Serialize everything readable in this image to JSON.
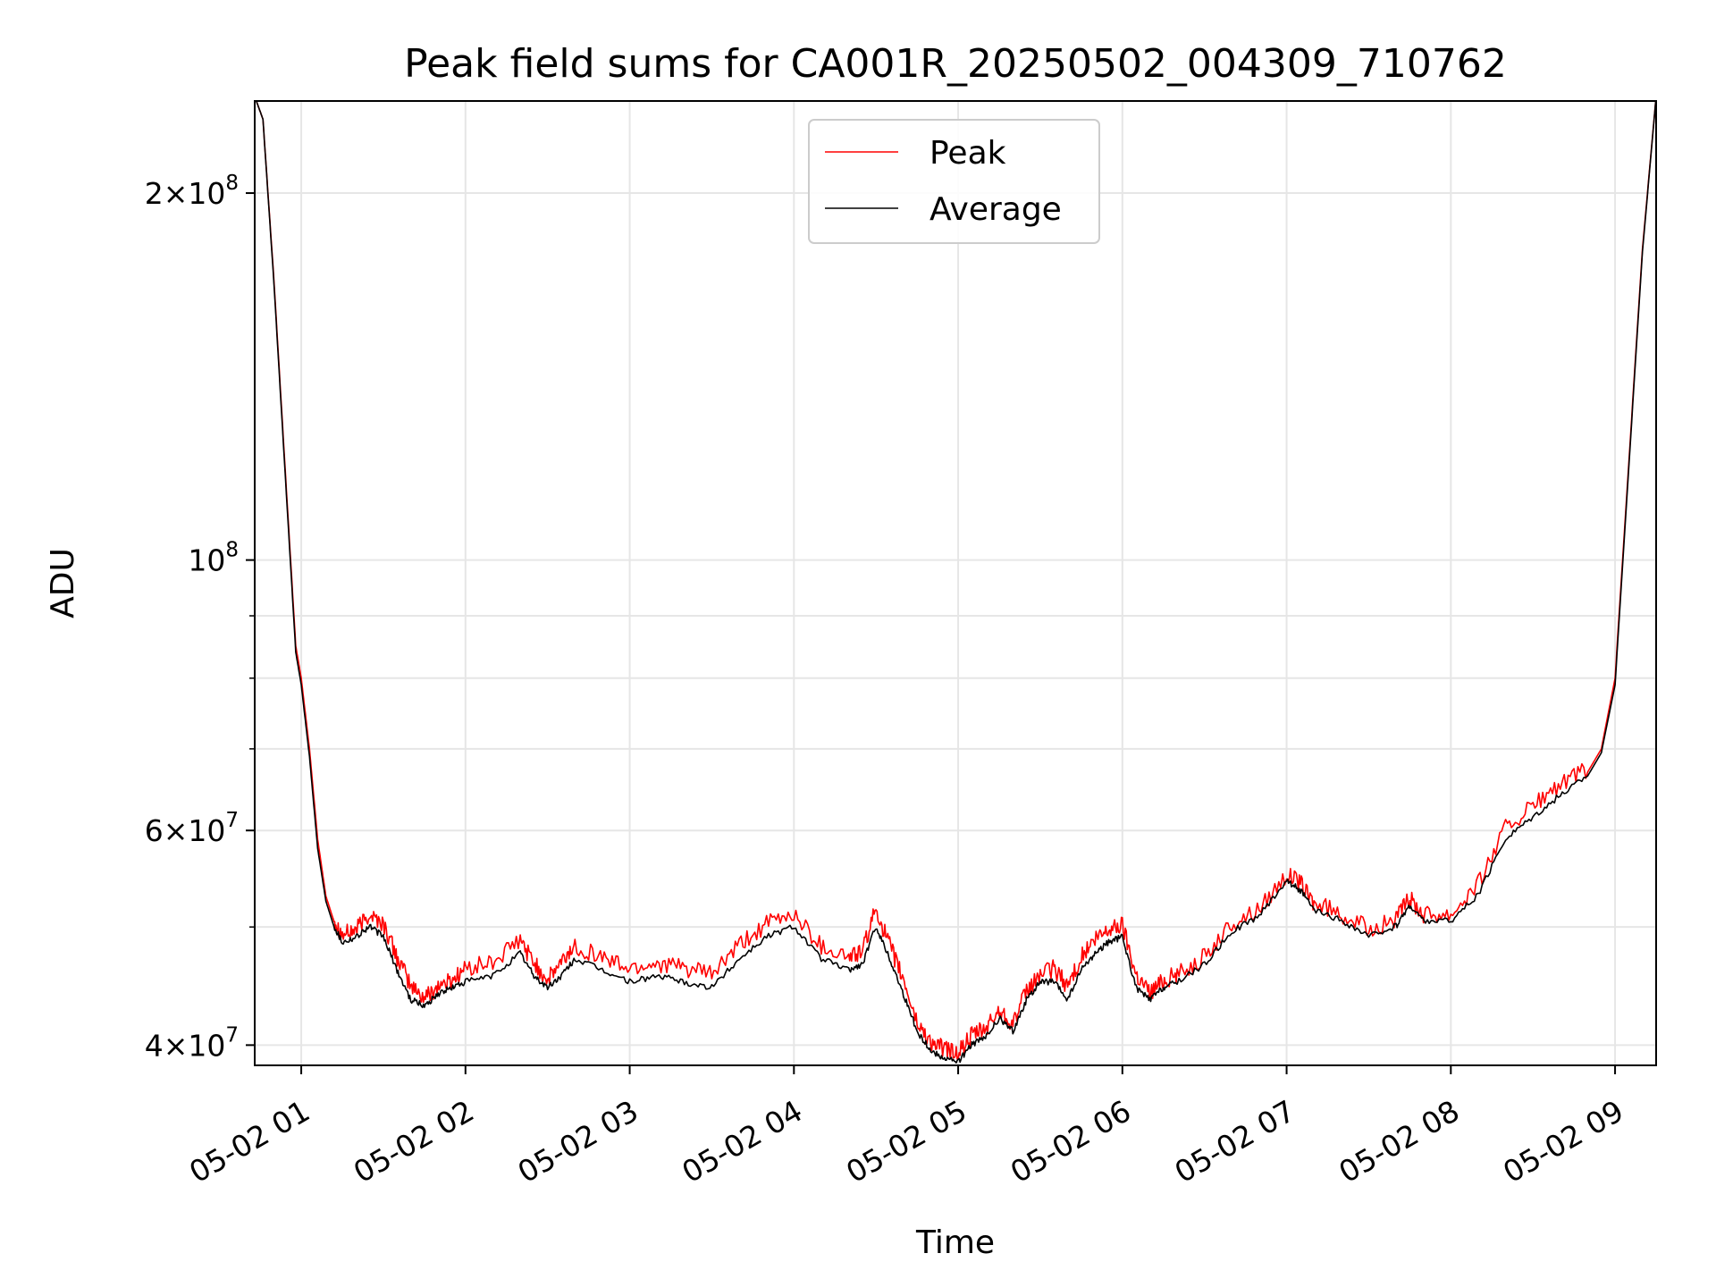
{
  "chart_data": {
    "type": "line",
    "title": "Peak field sums for CA001R_20250502_004309_710762",
    "xlabel": "Time",
    "ylabel": "ADU",
    "xscale": "time",
    "yscale": "log",
    "xlim": [
      "2025-05-02 00:43",
      "2025-05-02 09:15"
    ],
    "ylim": [
      38500000,
      238000000
    ],
    "x_ticks": [
      "05-02 01",
      "05-02 02",
      "05-02 03",
      "05-02 04",
      "05-02 05",
      "05-02 06",
      "05-02 07",
      "05-02 08",
      "05-02 09"
    ],
    "y_ticks": [
      {
        "base": "4",
        "exp": "7",
        "value": 40000000
      },
      {
        "base": "6",
        "exp": "7",
        "value": 60000000
      },
      {
        "base": "",
        "exp": "8",
        "value": 100000000
      },
      {
        "base": "2",
        "exp": "8",
        "value": 200000000
      }
    ],
    "y_minor_ticks": [
      50000000,
      70000000,
      80000000,
      90000000
    ],
    "grid": true,
    "legend_position": "top-center",
    "series": [
      {
        "name": "Peak",
        "color": "#ff0000",
        "x": [
          "2025-05-02 00:43",
          "2025-05-02 00:46",
          "2025-05-02 00:50",
          "2025-05-02 00:54",
          "2025-05-02 00:58",
          "2025-05-02 01:00",
          "2025-05-02 01:03",
          "2025-05-02 01:06",
          "2025-05-02 01:09",
          "2025-05-02 01:12",
          "2025-05-02 01:15",
          "2025-05-02 01:20",
          "2025-05-02 01:25",
          "2025-05-02 01:30",
          "2025-05-02 01:35",
          "2025-05-02 01:40",
          "2025-05-02 01:45",
          "2025-05-02 01:50",
          "2025-05-02 01:55",
          "2025-05-02 02:00",
          "2025-05-02 02:10",
          "2025-05-02 02:20",
          "2025-05-02 02:25",
          "2025-05-02 02:30",
          "2025-05-02 02:35",
          "2025-05-02 02:40",
          "2025-05-02 02:50",
          "2025-05-02 03:00",
          "2025-05-02 03:10",
          "2025-05-02 03:20",
          "2025-05-02 03:30",
          "2025-05-02 03:40",
          "2025-05-02 03:50",
          "2025-05-02 04:00",
          "2025-05-02 04:10",
          "2025-05-02 04:20",
          "2025-05-02 04:25",
          "2025-05-02 04:30",
          "2025-05-02 04:35",
          "2025-05-02 04:40",
          "2025-05-02 04:45",
          "2025-05-02 04:50",
          "2025-05-02 04:55",
          "2025-05-02 05:00",
          "2025-05-02 05:05",
          "2025-05-02 05:10",
          "2025-05-02 05:15",
          "2025-05-02 05:20",
          "2025-05-02 05:25",
          "2025-05-02 05:30",
          "2025-05-02 05:35",
          "2025-05-02 05:40",
          "2025-05-02 05:45",
          "2025-05-02 05:50",
          "2025-05-02 05:55",
          "2025-05-02 06:00",
          "2025-05-02 06:05",
          "2025-05-02 06:10",
          "2025-05-02 06:15",
          "2025-05-02 06:20",
          "2025-05-02 06:30",
          "2025-05-02 06:40",
          "2025-05-02 06:50",
          "2025-05-02 07:00",
          "2025-05-02 07:05",
          "2025-05-02 07:10",
          "2025-05-02 07:20",
          "2025-05-02 07:30",
          "2025-05-02 07:40",
          "2025-05-02 07:45",
          "2025-05-02 07:50",
          "2025-05-02 08:00",
          "2025-05-02 08:10",
          "2025-05-02 08:20",
          "2025-05-02 08:30",
          "2025-05-02 08:40",
          "2025-05-02 08:50",
          "2025-05-02 08:55",
          "2025-05-02 09:00",
          "2025-05-02 09:05",
          "2025-05-02 09:10",
          "2025-05-02 09:15"
        ],
        "y": [
          240000000,
          230000000,
          170000000,
          120000000,
          85000000,
          80000000,
          70000000,
          59000000,
          53000000,
          50500000,
          49000000,
          49500000,
          51000000,
          50000000,
          47000000,
          44500000,
          43500000,
          44500000,
          45000000,
          46000000,
          46500000,
          48500000,
          46500000,
          45000000,
          46500000,
          48000000,
          47000000,
          46000000,
          46500000,
          46000000,
          45500000,
          48000000,
          50000000,
          51000000,
          48000000,
          47000000,
          47500000,
          51500000,
          48000000,
          45000000,
          41500000,
          40000000,
          39500000,
          39200000,
          40500000,
          41000000,
          42500000,
          41500000,
          44000000,
          45500000,
          46000000,
          44500000,
          47000000,
          48500000,
          49500000,
          50000000,
          45500000,
          44000000,
          45000000,
          45500000,
          47000000,
          50000000,
          51500000,
          55000000,
          54000000,
          52000000,
          51000000,
          49500000,
          50500000,
          52500000,
          51000000,
          51000000,
          54000000,
          60000000,
          62500000,
          65000000,
          67000000,
          70000000,
          80000000,
          120000000,
          180000000,
          240000000
        ]
      },
      {
        "name": "Average",
        "color": "#000000",
        "x": [
          "2025-05-02 00:43",
          "2025-05-02 00:46",
          "2025-05-02 00:50",
          "2025-05-02 00:54",
          "2025-05-02 00:58",
          "2025-05-02 01:00",
          "2025-05-02 01:03",
          "2025-05-02 01:06",
          "2025-05-02 01:09",
          "2025-05-02 01:12",
          "2025-05-02 01:15",
          "2025-05-02 01:20",
          "2025-05-02 01:25",
          "2025-05-02 01:30",
          "2025-05-02 01:35",
          "2025-05-02 01:40",
          "2025-05-02 01:45",
          "2025-05-02 01:50",
          "2025-05-02 01:55",
          "2025-05-02 02:00",
          "2025-05-02 02:10",
          "2025-05-02 02:20",
          "2025-05-02 02:25",
          "2025-05-02 02:30",
          "2025-05-02 02:35",
          "2025-05-02 02:40",
          "2025-05-02 02:50",
          "2025-05-02 03:00",
          "2025-05-02 03:10",
          "2025-05-02 03:20",
          "2025-05-02 03:30",
          "2025-05-02 03:40",
          "2025-05-02 03:50",
          "2025-05-02 04:00",
          "2025-05-02 04:10",
          "2025-05-02 04:20",
          "2025-05-02 04:25",
          "2025-05-02 04:30",
          "2025-05-02 04:35",
          "2025-05-02 04:40",
          "2025-05-02 04:45",
          "2025-05-02 04:50",
          "2025-05-02 04:55",
          "2025-05-02 05:00",
          "2025-05-02 05:05",
          "2025-05-02 05:10",
          "2025-05-02 05:15",
          "2025-05-02 05:20",
          "2025-05-02 05:25",
          "2025-05-02 05:30",
          "2025-05-02 05:35",
          "2025-05-02 05:40",
          "2025-05-02 05:45",
          "2025-05-02 05:50",
          "2025-05-02 05:55",
          "2025-05-02 06:00",
          "2025-05-02 06:05",
          "2025-05-02 06:10",
          "2025-05-02 06:15",
          "2025-05-02 06:20",
          "2025-05-02 06:30",
          "2025-05-02 06:40",
          "2025-05-02 06:50",
          "2025-05-02 07:00",
          "2025-05-02 07:05",
          "2025-05-02 07:10",
          "2025-05-02 07:20",
          "2025-05-02 07:30",
          "2025-05-02 07:40",
          "2025-05-02 07:45",
          "2025-05-02 07:50",
          "2025-05-02 08:00",
          "2025-05-02 08:10",
          "2025-05-02 08:20",
          "2025-05-02 08:30",
          "2025-05-02 08:40",
          "2025-05-02 08:50",
          "2025-05-02 08:55",
          "2025-05-02 09:00",
          "2025-05-02 09:05",
          "2025-05-02 09:10",
          "2025-05-02 09:15"
        ],
        "y": [
          240000000,
          230000000,
          169000000,
          119000000,
          84000000,
          79000000,
          69000000,
          58000000,
          52500000,
          50000000,
          48500000,
          49000000,
          50000000,
          49000000,
          46000000,
          43500000,
          43000000,
          44000000,
          44500000,
          45000000,
          45500000,
          47500000,
          45500000,
          44500000,
          45500000,
          47000000,
          46000000,
          45000000,
          45500000,
          45000000,
          44500000,
          47000000,
          49000000,
          50000000,
          47000000,
          46000000,
          46500000,
          50000000,
          47000000,
          44000000,
          41000000,
          39500000,
          39000000,
          38700000,
          40000000,
          40500000,
          42000000,
          41000000,
          43500000,
          45000000,
          45000000,
          43500000,
          46000000,
          47500000,
          48500000,
          49000000,
          44500000,
          43500000,
          44500000,
          45000000,
          46500000,
          49500000,
          51000000,
          54500000,
          53500000,
          51500000,
          50500000,
          49000000,
          50000000,
          52000000,
          50500000,
          50500000,
          53000000,
          59000000,
          61500000,
          64000000,
          66500000,
          69500000,
          79000000,
          119000000,
          179000000,
          240000000
        ]
      }
    ]
  }
}
